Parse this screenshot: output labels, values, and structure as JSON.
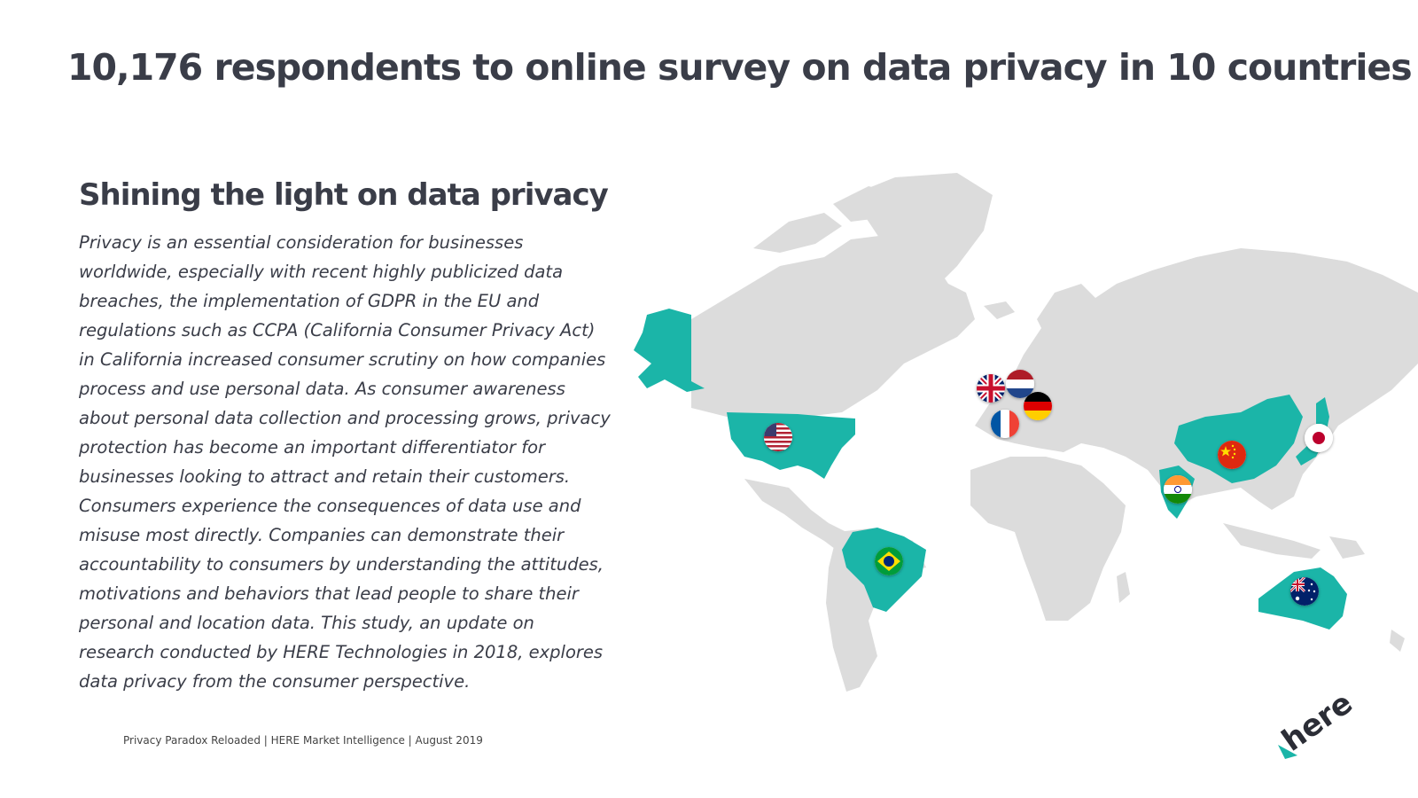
{
  "slide": {
    "title": "10,176 respondents to online survey on data privacy in 10 countries",
    "subtitle": "Shining the light on data privacy",
    "body": "Privacy is an essential consideration for businesses worldwide, especially with recent highly publicized data breaches, the implementation of GDPR in the EU and regulations such as CCPA (California Consumer Privacy Act) in California increased consumer scrutiny on how companies process and use personal data. As consumer awareness about personal data collection and processing grows, privacy protection has become an important differentiator for businesses looking to attract and retain their customers. Consumers experience the consequences of data use and misuse most directly. Companies can demonstrate their accountability to consumers by understanding the attitudes, motivations and behaviors that lead people to share their personal and location data. This study, an update on research conducted by HERE Technologies in 2018, explores data privacy from the consumer perspective.",
    "footer": "Privacy Paradox Reloaded | HERE Market Intelligence | August 2019"
  },
  "map": {
    "land_color": "#dcdcdc",
    "highlight_color": "#1bb5a8",
    "highlighted_countries": [
      "Alaska",
      "USA",
      "Brazil",
      "China",
      "India",
      "Japan",
      "Australia"
    ],
    "flags": [
      "united-kingdom-flag-icon",
      "netherlands-flag-icon",
      "germany-flag-icon",
      "france-flag-icon",
      "usa-flag-icon",
      "china-flag-icon",
      "japan-flag-icon",
      "india-flag-icon",
      "brazil-flag-icon",
      "australia-flag-icon"
    ]
  },
  "logo": {
    "text": "here",
    "color": "#1bb5a8"
  }
}
